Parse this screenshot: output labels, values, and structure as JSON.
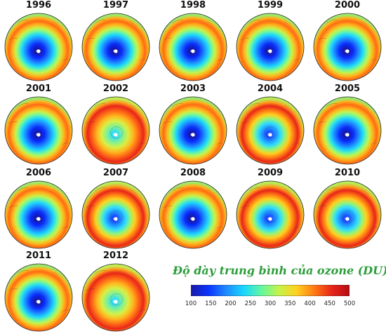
{
  "panels": [
    {
      "year": "1996",
      "hole": "strong"
    },
    {
      "year": "1997",
      "hole": "strong"
    },
    {
      "year": "1998",
      "hole": "strong"
    },
    {
      "year": "1999",
      "hole": "strong"
    },
    {
      "year": "2000",
      "hole": "strong"
    },
    {
      "year": "2001",
      "hole": "strong"
    },
    {
      "year": "2002",
      "hole": "weak"
    },
    {
      "year": "2003",
      "hole": "strong"
    },
    {
      "year": "2004",
      "hole": "medium"
    },
    {
      "year": "2005",
      "hole": "strong"
    },
    {
      "year": "2006",
      "hole": "strong"
    },
    {
      "year": "2007",
      "hole": "medium"
    },
    {
      "year": "2008",
      "hole": "strong"
    },
    {
      "year": "2009",
      "hole": "medium"
    },
    {
      "year": "2010",
      "hole": "medium"
    },
    {
      "year": "2011",
      "hole": "strong"
    },
    {
      "year": "2012",
      "hole": "weak"
    }
  ],
  "legend": {
    "title": "Độ dày trung bình của ozone (DU)",
    "ticks": [
      "100",
      "150",
      "200",
      "250",
      "300",
      "350",
      "400",
      "450",
      "500"
    ],
    "min": 100,
    "max": 500
  },
  "colors": {
    "scale": [
      "#1a1aa8",
      "#0a34ff",
      "#1e8bff",
      "#19d7ff",
      "#63f7a0",
      "#c6f24a",
      "#ffd11f",
      "#ff7a14",
      "#e8241a",
      "#b30d12"
    ],
    "title": "#2e9e3c"
  }
}
